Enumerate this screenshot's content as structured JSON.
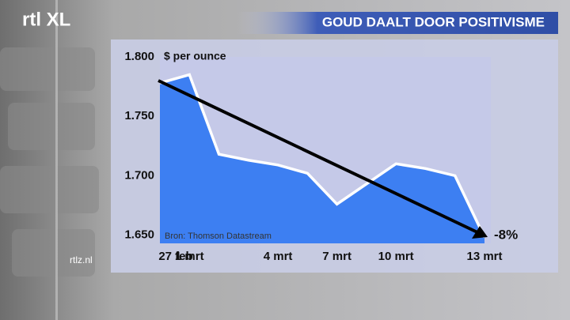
{
  "logo": "rtl XL",
  "site": "rtlz.nl",
  "chart_data": {
    "type": "area",
    "title": "GOUD DAALT DOOR POSITIVISME",
    "y_axis_label": "$ per ounce",
    "source": "Bron: Thomson Datastream",
    "annotation": "-8%",
    "categories": [
      "27 feb",
      "1 mrt",
      null,
      null,
      "4 mrt",
      null,
      "7 mrt",
      null,
      "10 mrt",
      null,
      null,
      "13 mrt"
    ],
    "values": [
      1778,
      1785,
      1718,
      1713,
      1709,
      1702,
      1676,
      1693,
      1710,
      1706,
      1700,
      1648
    ],
    "color": "#3d7ff2",
    "line_color": "#ffffff",
    "ylim": [
      1643,
      1800
    ],
    "yticks": [
      {
        "value": 1650,
        "label": "1.650"
      },
      {
        "value": 1700,
        "label": "1.700"
      },
      {
        "value": 1750,
        "label": "1.750"
      },
      {
        "value": 1800,
        "label": "1.800"
      }
    ]
  }
}
